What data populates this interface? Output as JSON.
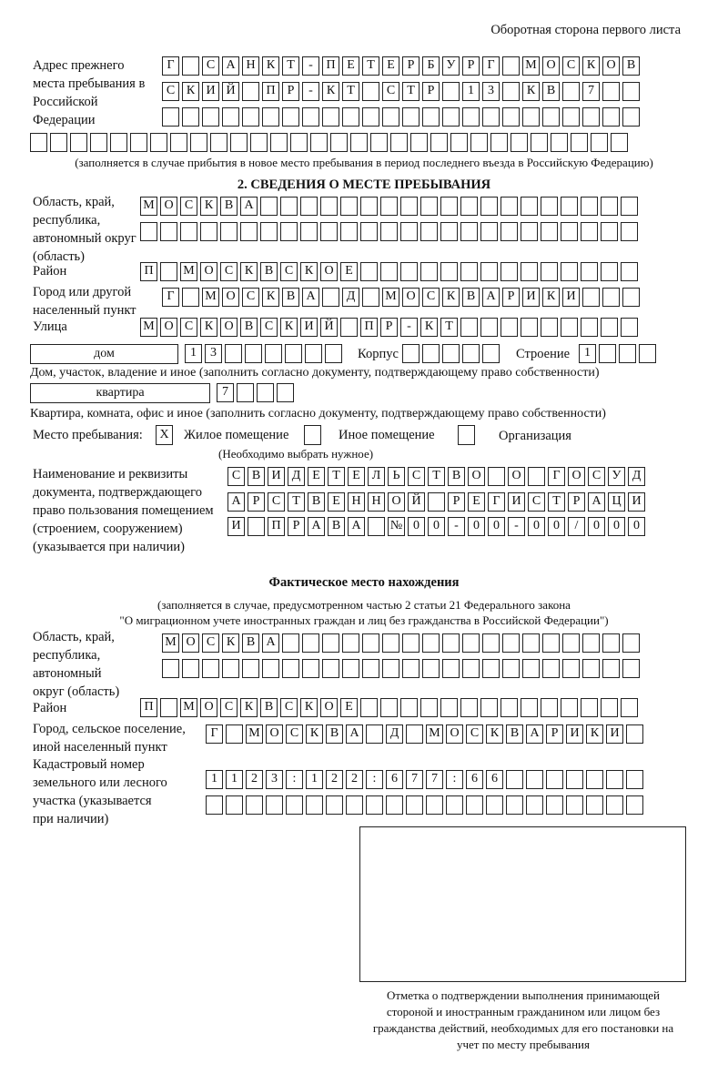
{
  "header": "Оборотная сторона первого листа",
  "prev_address": {
    "label": "Адрес прежнего места пребывания в Российской Федерации",
    "rows": [
      [
        "Г",
        "",
        "С",
        "А",
        "Н",
        "К",
        "Т",
        "-",
        "П",
        "Е",
        "Т",
        "Е",
        "Р",
        "Б",
        "У",
        "Р",
        "Г",
        "",
        "М",
        "О",
        "С",
        "К",
        "О",
        "В"
      ],
      [
        "С",
        "К",
        "И",
        "Й",
        "",
        "П",
        "Р",
        "-",
        "К",
        "Т",
        "",
        "С",
        "Т",
        "Р",
        "",
        "1",
        "3",
        "",
        "К",
        "В",
        "",
        "7",
        "",
        ""
      ],
      [
        "",
        "",
        "",
        "",
        "",
        "",
        "",
        "",
        "",
        "",
        "",
        "",
        "",
        "",
        "",
        "",
        "",
        "",
        "",
        "",
        "",
        "",
        "",
        ""
      ],
      [
        "",
        "",
        "",
        "",
        "",
        "",
        "",
        "",
        "",
        "",
        "",
        "",
        "",
        "",
        "",
        "",
        "",
        "",
        "",
        "",
        "",
        "",
        "",
        "",
        "",
        "",
        "",
        "",
        "",
        ""
      ]
    ],
    "note": "(заполняется в случае прибытия в новое место пребывания в период последнего въезда в Российскую Федерацию)"
  },
  "section2": {
    "title": "2. СВЕДЕНИЯ О МЕСТЕ ПРЕБЫВАНИЯ",
    "region_label": "Область, край, республика, автономный округ (область)",
    "region_rows": [
      [
        "М",
        "О",
        "С",
        "К",
        "В",
        "А",
        "",
        "",
        "",
        "",
        "",
        "",
        "",
        "",
        "",
        "",
        "",
        "",
        "",
        "",
        "",
        "",
        "",
        "",
        ""
      ],
      [
        "",
        "",
        "",
        "",
        "",
        "",
        "",
        "",
        "",
        "",
        "",
        "",
        "",
        "",
        "",
        "",
        "",
        "",
        "",
        "",
        "",
        "",
        "",
        "",
        ""
      ]
    ],
    "district_label": "Район",
    "district": [
      "П",
      "",
      "М",
      "О",
      "С",
      "К",
      "В",
      "С",
      "К",
      "О",
      "Е",
      "",
      "",
      "",
      "",
      "",
      "",
      "",
      "",
      "",
      "",
      "",
      "",
      "",
      ""
    ],
    "city_label": "Город или другой населенный пункт",
    "city": [
      "Г",
      "",
      "М",
      "О",
      "С",
      "К",
      "В",
      "А",
      "",
      "Д",
      "",
      "М",
      "О",
      "С",
      "К",
      "В",
      "А",
      "Р",
      "И",
      "К",
      "И",
      "",
      "",
      ""
    ],
    "street_label": "Улица",
    "street": [
      "М",
      "О",
      "С",
      "К",
      "О",
      "В",
      "С",
      "К",
      "И",
      "Й",
      "",
      "П",
      "Р",
      "-",
      "К",
      "Т",
      "",
      "",
      "",
      "",
      "",
      "",
      "",
      "",
      ""
    ],
    "house_type": "дом",
    "house": [
      "1",
      "3",
      "",
      "",
      "",
      "",
      "",
      ""
    ],
    "korpus_label": "Корпус",
    "korpus": [
      "",
      "",
      "",
      "",
      ""
    ],
    "building_label": "Строение",
    "building": [
      "1",
      "",
      "",
      ""
    ],
    "house_note": "Дом, участок, владение и иное (заполнить согласно документу, подтверждающему право собственности)",
    "flat_type": "квартира",
    "flat": [
      "7",
      "",
      "",
      ""
    ],
    "flat_note": "Квартира, комната, офис и иное (заполнить согласно документу, подтверждающему право собственности)",
    "place_label": "Место пребывания:",
    "place_options": [
      {
        "label": "Жилое помещение",
        "mark": "X"
      },
      {
        "label": "Иное помещение",
        "mark": ""
      },
      {
        "label": "Организация",
        "mark": ""
      }
    ],
    "place_note": "(Необходимо выбрать нужное)",
    "doc_label": "Наименование и реквизиты документа, подтверждающего право пользования помещением (строением, сооружением) (указывается при наличии)",
    "doc_rows": [
      [
        "С",
        "В",
        "И",
        "Д",
        "Е",
        "Т",
        "Е",
        "Л",
        "Ь",
        "С",
        "Т",
        "В",
        "О",
        "",
        "О",
        "",
        "Г",
        "О",
        "С",
        "У",
        "Д"
      ],
      [
        "А",
        "Р",
        "С",
        "Т",
        "В",
        "Е",
        "Н",
        "Н",
        "О",
        "Й",
        "",
        "Р",
        "Е",
        "Г",
        "И",
        "С",
        "Т",
        "Р",
        "А",
        "Ц",
        "И"
      ],
      [
        "И",
        "",
        "П",
        "Р",
        "А",
        "В",
        "А",
        "",
        "№",
        "0",
        "0",
        "-",
        "0",
        "0",
        "-",
        "0",
        "0",
        "/",
        "0",
        "0",
        "0"
      ]
    ]
  },
  "actual": {
    "title": "Фактическое место нахождения",
    "note1": "(заполняется в случае, предусмотренном частью 2 статьи 21 Федерального закона",
    "note2": "\"О миграционном учете иностранных граждан и лиц без гражданства в Российской Федерации\")",
    "region_label": "Область, край, республика, автономный округ (область)",
    "region_rows": [
      [
        "М",
        "О",
        "С",
        "К",
        "В",
        "А",
        "",
        "",
        "",
        "",
        "",
        "",
        "",
        "",
        "",
        "",
        "",
        "",
        "",
        "",
        "",
        "",
        "",
        ""
      ],
      [
        "",
        "",
        "",
        "",
        "",
        "",
        "",
        "",
        "",
        "",
        "",
        "",
        "",
        "",
        "",
        "",
        "",
        "",
        "",
        "",
        "",
        "",
        "",
        ""
      ]
    ],
    "district_label": "Район",
    "district": [
      "П",
      "",
      "М",
      "О",
      "С",
      "К",
      "В",
      "С",
      "К",
      "О",
      "Е",
      "",
      "",
      "",
      "",
      "",
      "",
      "",
      "",
      "",
      "",
      "",
      "",
      "",
      ""
    ],
    "city_label": "Город, сельское поселение, иной населенный пункт",
    "city": [
      "Г",
      "",
      "М",
      "О",
      "С",
      "К",
      "В",
      "А",
      "",
      "Д",
      "",
      "М",
      "О",
      "С",
      "К",
      "В",
      "А",
      "Р",
      "И",
      "К",
      "И",
      ""
    ],
    "cadastre_label": "Кадастровый номер земельного или лесного участка (указывается при наличии)",
    "cadastre_rows": [
      [
        "1",
        "1",
        "2",
        "3",
        ":",
        "1",
        "2",
        "2",
        ":",
        "6",
        "7",
        "7",
        ":",
        "6",
        "6",
        "",
        "",
        "",
        "",
        "",
        "",
        ""
      ],
      [
        "",
        "",
        "",
        "",
        "",
        "",
        "",
        "",
        "",
        "",
        "",
        "",
        "",
        "",
        "",
        "",
        "",
        "",
        "",
        "",
        "",
        ""
      ]
    ]
  },
  "stamp_caption": "Отметка о подтверждении выполнения принимающей стороной и иностранным гражданином или лицом без гражданства действий, необходимых для его постановки на учет по месту пребывания"
}
